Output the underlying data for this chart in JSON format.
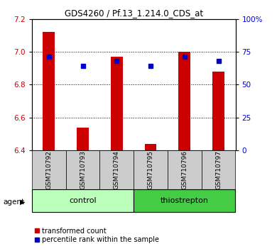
{
  "title": "GDS4260 / Pf.13_1.214.0_CDS_at",
  "samples": [
    "GSM710792",
    "GSM710793",
    "GSM710794",
    "GSM710795",
    "GSM710796",
    "GSM710797"
  ],
  "red_values": [
    7.12,
    6.54,
    6.97,
    6.44,
    7.0,
    6.88
  ],
  "blue_values_pct": [
    71,
    64,
    68,
    64,
    71,
    68
  ],
  "ylim_left": [
    6.4,
    7.2
  ],
  "ylim_right": [
    0,
    100
  ],
  "yticks_left": [
    6.4,
    6.6,
    6.8,
    7.0,
    7.2
  ],
  "yticks_right": [
    0,
    25,
    50,
    75,
    100
  ],
  "ytick_labels_right": [
    "0",
    "25",
    "50",
    "75",
    "100%"
  ],
  "bar_width": 0.35,
  "bar_bottom": 6.4,
  "red_color": "#CC0000",
  "blue_color": "#0000CC",
  "control_color": "#BBFFBB",
  "thiostrepton_color": "#44CC44",
  "bg_sample_labels": "#CCCCCC",
  "legend_red_label": "transformed count",
  "legend_blue_label": "percentile rank within the sample",
  "agent_label": "agent",
  "control_label": "control",
  "thiostrepton_label": "thiostrepton"
}
